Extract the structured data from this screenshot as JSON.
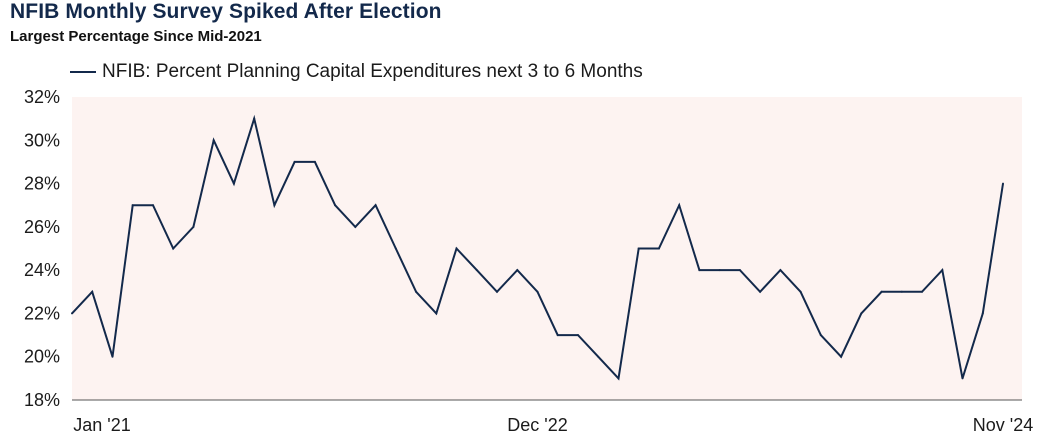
{
  "title": "NFIB Monthly Survey Spiked After Election",
  "subtitle": "Largest Percentage Since Mid-2021",
  "colors": {
    "title": "#13294b",
    "line": "#13294b",
    "plot_bg": "#fdf3f1",
    "axis": "#555555"
  },
  "chart_data": {
    "type": "line",
    "title": "NFIB Monthly Survey Spiked After Election",
    "subtitle": "Largest Percentage Since Mid-2021",
    "xlabel": "",
    "ylabel": "",
    "legend_position": "top-left",
    "grid": false,
    "ylim": [
      18,
      32
    ],
    "yticks": [
      18,
      20,
      22,
      24,
      26,
      28,
      30,
      32
    ],
    "ytick_labels": [
      "18%",
      "20%",
      "22%",
      "24%",
      "26%",
      "28%",
      "30%",
      "32%"
    ],
    "x_tick_labels": [
      {
        "index": 0,
        "label": "Jan '21"
      },
      {
        "index": 23,
        "label": "Dec '22"
      },
      {
        "index": 46,
        "label": "Nov '24"
      }
    ],
    "series": [
      {
        "name": "NFIB: Percent Planning Capital Expenditures next 3 to 6 Months",
        "values": [
          22,
          23,
          20,
          27,
          27,
          25,
          26,
          30,
          28,
          31,
          27,
          29,
          29,
          27,
          26,
          27,
          25,
          23,
          22,
          25,
          24,
          23,
          24,
          23,
          21,
          21,
          20,
          19,
          25,
          25,
          27,
          24,
          24,
          24,
          23,
          24,
          23,
          21,
          20,
          22,
          23,
          23,
          23,
          24,
          19,
          22,
          28
        ]
      }
    ]
  }
}
